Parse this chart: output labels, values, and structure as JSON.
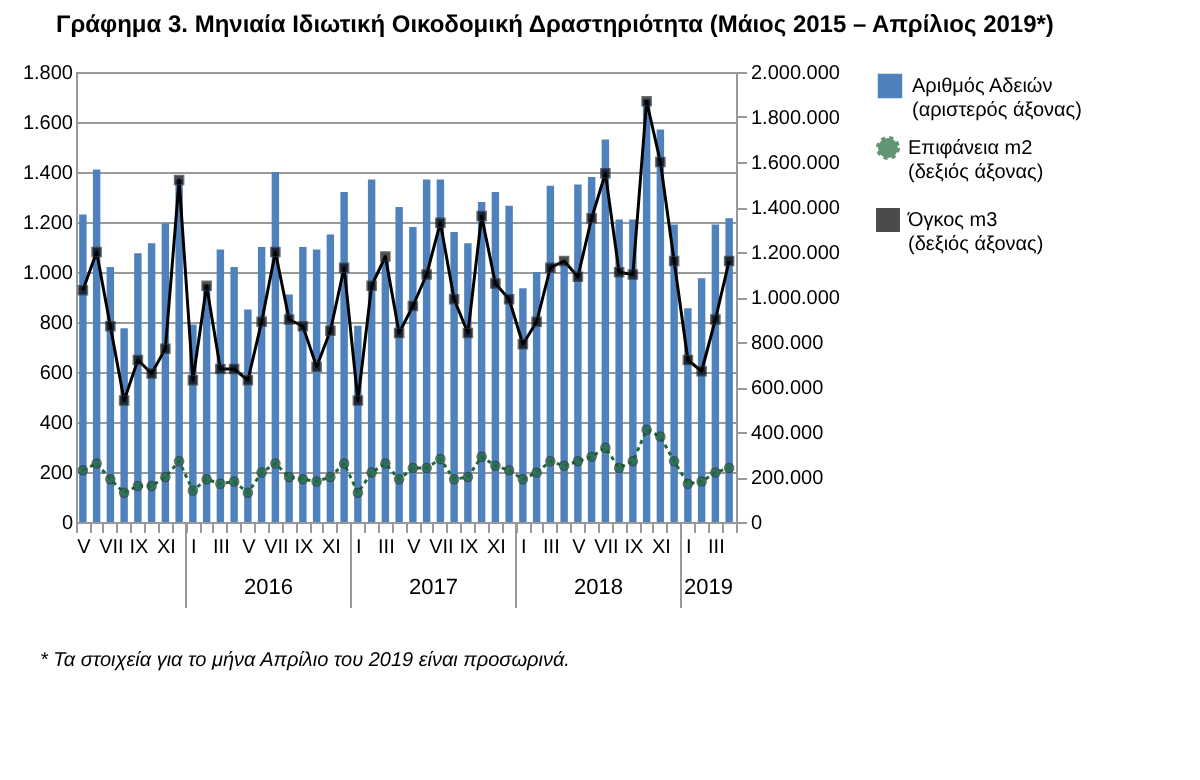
{
  "chart_data": {
    "type": "bar",
    "title": "Γράφημα 3. Μηνιαία Ιδιωτική Οικοδομική Δραστηριότητα (Μάιος 2015 – Απρίλιος 2019*)",
    "categories": [
      "V",
      null,
      "VII",
      null,
      "IX",
      null,
      "XI",
      null,
      "I",
      null,
      "III",
      null,
      "V",
      null,
      "VII",
      null,
      "IX",
      null,
      "XI",
      null,
      "I",
      null,
      "III",
      null,
      "V",
      null,
      "VII",
      null,
      "IX",
      null,
      "XI",
      null,
      "I",
      null,
      "III",
      null,
      "V",
      null,
      "VII",
      null,
      "IX",
      null,
      "XI",
      null,
      "I",
      null,
      "III",
      null
    ],
    "series": [
      {
        "name": "Αριθμός Αδειών (αριστερός άξονας)",
        "color": "#4f81bd",
        "values": [
          1230,
          1410,
          1020,
          775,
          1075,
          1115,
          1195,
          1370,
          790,
          950,
          1090,
          1020,
          850,
          1100,
          1400,
          910,
          1100,
          1090,
          1150,
          1320,
          785,
          1370,
          1045,
          1260,
          1180,
          1370,
          1370,
          1160,
          1115,
          1280,
          1320,
          1265,
          935,
          1000,
          1345,
          1035,
          1350,
          1380,
          1530,
          1210,
          1210,
          1690,
          1570,
          1190,
          855,
          975,
          1190,
          1215
        ]
      },
      {
        "name": "Επιφάνεια m2 (δεξιός άξονας)",
        "type": "line",
        "axis": "y2",
        "color": "#1e6b3a",
        "marker": "circle",
        "line_style": "dotted",
        "values": [
          230000,
          260000,
          190000,
          130000,
          160000,
          160000,
          200000,
          270000,
          140000,
          190000,
          170000,
          180000,
          130000,
          220000,
          260000,
          200000,
          190000,
          180000,
          200000,
          260000,
          130000,
          220000,
          260000,
          190000,
          240000,
          240000,
          280000,
          190000,
          200000,
          290000,
          250000,
          230000,
          190000,
          220000,
          270000,
          250000,
          270000,
          290000,
          330000,
          240000,
          270000,
          410000,
          380000,
          270000,
          170000,
          180000,
          220000,
          240000
        ]
      },
      {
        "name": "Όγκος m3 (δεξιός άξονας)",
        "type": "line",
        "axis": "y2",
        "color": "#000000",
        "marker": "square",
        "line_style": "solid",
        "values": [
          1030000,
          1200000,
          870000,
          540000,
          720000,
          660000,
          770000,
          1520000,
          630000,
          1050000,
          680000,
          680000,
          630000,
          890000,
          1200000,
          900000,
          870000,
          690000,
          850000,
          1130000,
          540000,
          1050000,
          1180000,
          840000,
          960000,
          1100000,
          1330000,
          990000,
          840000,
          1360000,
          1060000,
          990000,
          790000,
          890000,
          1130000,
          1160000,
          1090000,
          1350000,
          1550000,
          1110000,
          1100000,
          1870000,
          1600000,
          1160000,
          720000,
          670000,
          900000,
          1160000
        ]
      }
    ],
    "ylim": [
      0,
      1800
    ],
    "yticks": [
      0,
      {
        "value": 200,
        "label": "200"
      },
      {
        "value": 400,
        "label": "400"
      },
      {
        "value": 600,
        "label": "600"
      },
      {
        "value": 800,
        "label": "800"
      },
      {
        "value": 1000,
        "label": "1.000"
      },
      {
        "value": 1200,
        "label": "1.200"
      },
      {
        "value": 1400,
        "label": "1.400"
      },
      {
        "value": 1600,
        "label": "1.600"
      },
      {
        "value": 1800,
        "label": "1.800"
      }
    ],
    "y2lim": [
      0,
      2000000
    ],
    "y2ticks": [
      0,
      {
        "value": 200000,
        "label": "200.000"
      },
      {
        "value": 400000,
        "label": "400.000"
      },
      {
        "value": 600000,
        "label": "600.000"
      },
      {
        "value": 800000,
        "label": "800.000"
      },
      {
        "value": 1000000,
        "label": "1.000.000"
      },
      {
        "value": 1200000,
        "label": "1.200.000"
      },
      {
        "value": 1400000,
        "label": "1.400.000"
      },
      {
        "value": 1600000,
        "label": "1.600.000"
      },
      {
        "value": 1800000,
        "label": "1.800.000"
      },
      {
        "value": 2000000,
        "label": "2.000.000"
      }
    ],
    "grid": "y",
    "legend": "right",
    "annotations": [
      "2016",
      "2017",
      "2018",
      "2019",
      "* Τα στοιχεία για το μήνα Απρίλιο του 2019 είναι προσωρινά."
    ]
  }
}
